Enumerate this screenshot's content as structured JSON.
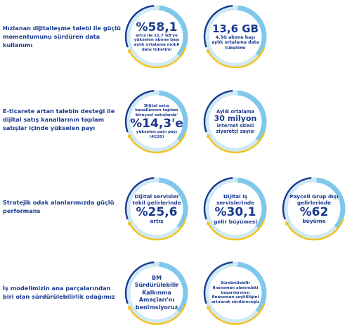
{
  "colors": {
    "ring": "#cfe9f7",
    "arc_light": "#7fc8ec",
    "arc_dark": "#1a3a8f",
    "arrow": "#f4c21a",
    "text": "#1a3a8f"
  },
  "rows": [
    {
      "label": "Hızlanan dijitalleşme talebi ile güçlü momentumunu sürdüren data kullanımı"
    },
    {
      "label": "E-ticarete artan talebin desteği ile dijital satış kanallarının toplam satışlar içinde yükselen payı"
    },
    {
      "label": "Stratejik odak alanlarımızda güçlü performans"
    },
    {
      "label": "İş modelimizin ana parçalarından biri olan sürdürülebilirlik odağımız"
    }
  ],
  "circles": {
    "c1": {
      "big": "%58,1",
      "text": "artış ile 11,7 GB'ye yükselen abone başı aylık ortalama mobil data tüketimi"
    },
    "c2": {
      "big": "13,6 GB",
      "text": "4.5G abone başı aylık ortalama data tüketimi"
    },
    "c3": {
      "top": "Dijital satış kanallarının toplam bireysel satışlarda' ",
      "big": "%14,3'e",
      "bottom": "yükselen payı payı (4Ç20)"
    },
    "c4": {
      "top": "Aylık ortalama",
      "mid": "30 milyon",
      "bottom": "internet sitesi ziyaretçi sayısı"
    },
    "c5": {
      "top": "Dijital servisler tekil gelirlerinde",
      "big": "%25,6",
      "bottom": "artış"
    },
    "c6": {
      "top": "Dijital iş servislerinde",
      "big": "%30,1",
      "bottom": "gelir büyümesi"
    },
    "c7": {
      "top": "Paycell Grup dışı gelirlerinde",
      "big": "%62",
      "bottom": "büyüme"
    },
    "c8": {
      "text": "BM Sürdürülebilir Kalkınma Amaçları'nı benimsiyoruz"
    },
    "c9": {
      "text": "Sürdürülebilir finansman alanındaki başarılarımızı finansman çeşitliliğini artırarak sürdüreceğiz"
    }
  }
}
